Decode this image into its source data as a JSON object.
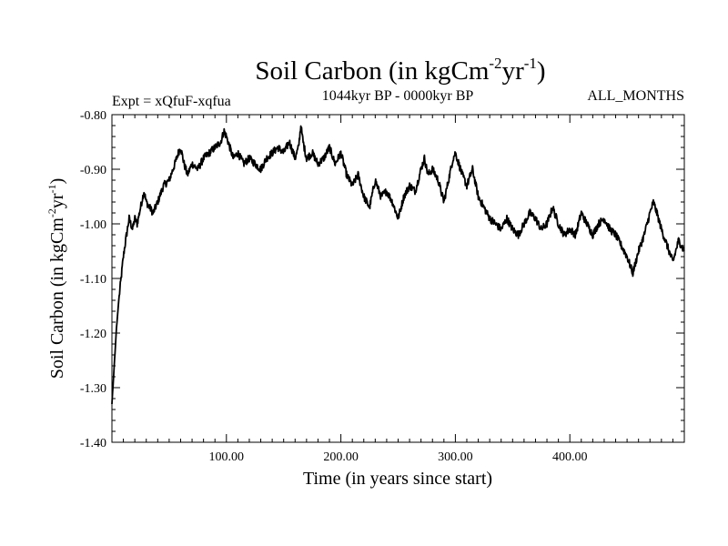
{
  "chart_data": {
    "type": "line",
    "title_main": "Soil Carbon (in kgCm",
    "title_sup1": "-2",
    "title_mid": "yr",
    "title_sup2": "-1",
    "title_end": ")",
    "subtitle_left": "Expt = xQfuF-xqfua",
    "subtitle_center": "1044kyr BP - 0000kyr BP",
    "subtitle_right": "ALL_MONTHS",
    "xlabel": "Time (in years since start)",
    "ylabel_main": "Soil Carbon (in kgCm",
    "ylabel_sup1": "-2",
    "ylabel_mid": "yr",
    "ylabel_sup2": "-1",
    "ylabel_end": ")",
    "xlim": [
      0,
      500
    ],
    "ylim": [
      -1.4,
      -0.8
    ],
    "x_ticks": [
      100,
      200,
      300,
      400
    ],
    "x_tick_labels": [
      "100.00",
      "200.00",
      "300.00",
      "400.00"
    ],
    "y_ticks": [
      -1.4,
      -1.3,
      -1.2,
      -1.1,
      -1.0,
      -0.9,
      -0.8
    ],
    "y_tick_labels": [
      "-1.40",
      "-1.30",
      "-1.20",
      "-1.10",
      "-1.00",
      "-0.90",
      "-0.80"
    ],
    "line_color": "#000000",
    "series": [
      {
        "name": "Soil Carbon",
        "x": [
          0,
          2,
          4,
          6,
          8,
          10,
          12,
          15,
          18,
          20,
          22,
          25,
          28,
          30,
          33,
          36,
          40,
          45,
          50,
          55,
          58,
          60,
          63,
          66,
          70,
          75,
          80,
          85,
          90,
          95,
          98,
          100,
          103,
          106,
          110,
          115,
          120,
          125,
          130,
          135,
          140,
          145,
          150,
          155,
          160,
          163,
          165,
          167,
          170,
          175,
          180,
          185,
          190,
          195,
          200,
          205,
          210,
          215,
          220,
          225,
          230,
          235,
          240,
          245,
          250,
          255,
          260,
          265,
          270,
          273,
          276,
          280,
          285,
          290,
          295,
          298,
          300,
          303,
          306,
          310,
          315,
          320,
          325,
          330,
          335,
          340,
          345,
          350,
          355,
          360,
          365,
          370,
          375,
          380,
          385,
          390,
          395,
          400,
          405,
          410,
          415,
          420,
          425,
          430,
          435,
          440,
          445,
          450,
          455,
          460,
          465,
          470,
          473,
          476,
          480,
          485,
          490,
          495,
          500
        ],
        "values": [
          -1.33,
          -1.26,
          -1.19,
          -1.14,
          -1.1,
          -1.06,
          -1.03,
          -0.99,
          -1.01,
          -0.99,
          -1.0,
          -0.97,
          -0.94,
          -0.96,
          -0.97,
          -0.98,
          -0.96,
          -0.93,
          -0.92,
          -0.89,
          -0.87,
          -0.86,
          -0.89,
          -0.91,
          -0.89,
          -0.9,
          -0.88,
          -0.87,
          -0.86,
          -0.85,
          -0.83,
          -0.84,
          -0.86,
          -0.88,
          -0.87,
          -0.89,
          -0.88,
          -0.89,
          -0.9,
          -0.88,
          -0.87,
          -0.86,
          -0.87,
          -0.85,
          -0.88,
          -0.86,
          -0.82,
          -0.85,
          -0.88,
          -0.87,
          -0.89,
          -0.88,
          -0.86,
          -0.89,
          -0.87,
          -0.91,
          -0.93,
          -0.91,
          -0.95,
          -0.97,
          -0.92,
          -0.95,
          -0.94,
          -0.96,
          -0.99,
          -0.95,
          -0.93,
          -0.94,
          -0.9,
          -0.88,
          -0.91,
          -0.9,
          -0.92,
          -0.96,
          -0.91,
          -0.88,
          -0.87,
          -0.89,
          -0.91,
          -0.93,
          -0.9,
          -0.95,
          -0.97,
          -0.99,
          -1.0,
          -1.01,
          -0.99,
          -1.01,
          -1.02,
          -1.0,
          -0.98,
          -0.99,
          -1.01,
          -1.0,
          -0.97,
          -1.0,
          -1.02,
          -1.01,
          -1.02,
          -0.98,
          -1.0,
          -1.02,
          -1.0,
          -0.99,
          -1.01,
          -1.02,
          -1.04,
          -1.06,
          -1.09,
          -1.05,
          -1.02,
          -0.98,
          -0.96,
          -0.98,
          -1.01,
          -1.04,
          -1.07,
          -1.03,
          -1.05
        ]
      }
    ]
  }
}
